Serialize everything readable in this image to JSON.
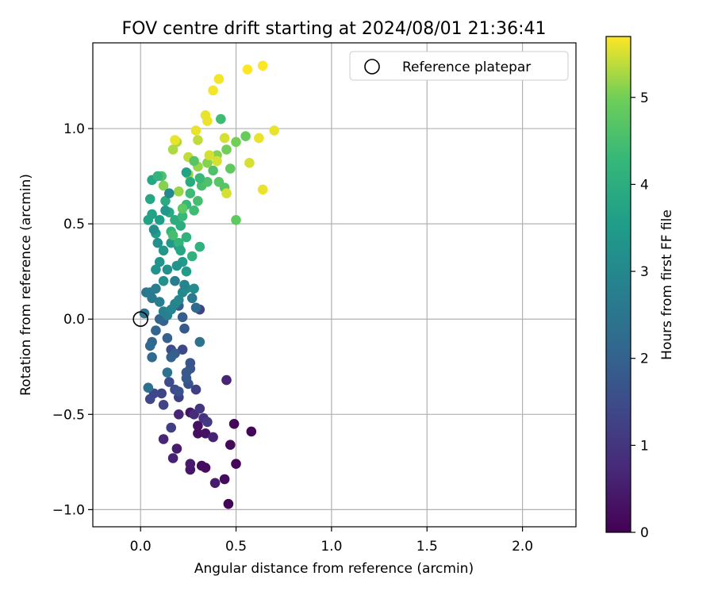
{
  "chart_data": {
    "type": "scatter",
    "title": "FOV centre drift starting at 2024/08/01 21:36:41",
    "xlabel": "Angular distance from reference (arcmin)",
    "ylabel": "Rotation from reference (arcmin)",
    "xlim": [
      -0.25,
      2.28
    ],
    "ylim": [
      -1.09,
      1.45
    ],
    "xticks": [
      0.0,
      0.5,
      1.0,
      1.5,
      2.0
    ],
    "xtick_labels": [
      "0.0",
      "0.5",
      "1.0",
      "1.5",
      "2.0"
    ],
    "yticks": [
      -1.0,
      -0.5,
      0.0,
      0.5,
      1.0
    ],
    "ytick_labels": [
      "−1.0",
      "−0.5",
      "0.0",
      "0.5",
      "1.0"
    ],
    "grid": true,
    "legend": {
      "placement": "top-right",
      "entries": [
        "Reference platepar"
      ]
    },
    "reference_point": {
      "x": 0.0,
      "y": 0.0,
      "marker": "open-circle"
    },
    "colorbar": {
      "label": "Hours from first FF file",
      "range": [
        0,
        5.7
      ],
      "ticks": [
        0,
        1,
        2,
        3,
        4,
        5
      ],
      "tick_labels": [
        "0",
        "1",
        "2",
        "3",
        "4",
        "5"
      ],
      "colormap": "viridis"
    },
    "series": [
      {
        "marker": "filled-circle",
        "points": [
          [
            0.46,
            -0.97,
            0.05
          ],
          [
            0.5,
            -0.76,
            0.1
          ],
          [
            0.58,
            -0.59,
            0.1
          ],
          [
            0.49,
            -0.55,
            0.1
          ],
          [
            0.47,
            -0.66,
            0.15
          ],
          [
            0.44,
            -0.84,
            0.2
          ],
          [
            0.34,
            -0.78,
            0.2
          ],
          [
            0.32,
            -0.77,
            0.2
          ],
          [
            0.3,
            -0.6,
            0.25
          ],
          [
            0.34,
            -0.6,
            0.3
          ],
          [
            0.3,
            -0.56,
            0.3
          ],
          [
            0.26,
            -0.49,
            0.35
          ],
          [
            0.39,
            -0.86,
            0.5
          ],
          [
            0.26,
            -0.79,
            0.4
          ],
          [
            0.26,
            -0.76,
            0.45
          ],
          [
            0.19,
            -0.68,
            0.5
          ],
          [
            0.17,
            -0.73,
            0.6
          ],
          [
            0.38,
            -0.62,
            0.6
          ],
          [
            0.2,
            -0.5,
            0.65
          ],
          [
            0.12,
            -0.63,
            0.7
          ],
          [
            0.45,
            -0.32,
            0.65
          ],
          [
            0.28,
            -0.5,
            0.8
          ],
          [
            0.33,
            -0.52,
            0.9
          ],
          [
            0.31,
            -0.47,
            1.0
          ],
          [
            0.35,
            -0.54,
            1.1
          ],
          [
            0.16,
            -0.57,
            1.2
          ],
          [
            0.29,
            -0.37,
            1.2
          ],
          [
            0.2,
            -0.41,
            1.2
          ],
          [
            0.11,
            -0.39,
            1.3
          ],
          [
            0.12,
            -0.45,
            1.3
          ],
          [
            0.07,
            -0.39,
            1.4
          ],
          [
            0.05,
            -0.42,
            1.4
          ],
          [
            0.31,
            0.05,
            1.3
          ],
          [
            0.22,
            -0.16,
            1.4
          ],
          [
            0.16,
            -0.16,
            1.5
          ],
          [
            0.15,
            -0.33,
            1.5
          ],
          [
            0.18,
            -0.37,
            1.5
          ],
          [
            0.2,
            -0.38,
            1.6
          ],
          [
            0.25,
            -0.34,
            1.6
          ],
          [
            0.26,
            -0.23,
            1.7
          ],
          [
            0.26,
            -0.26,
            1.7
          ],
          [
            0.24,
            -0.28,
            1.8
          ],
          [
            0.24,
            -0.31,
            1.8
          ],
          [
            0.23,
            -0.05,
            1.8
          ],
          [
            0.22,
            0.01,
            1.9
          ],
          [
            0.2,
            0.07,
            1.9
          ],
          [
            0.18,
            -0.18,
            1.9
          ],
          [
            0.16,
            -0.2,
            2.0
          ],
          [
            0.14,
            -0.1,
            2.0
          ],
          [
            0.12,
            -0.01,
            2.0
          ],
          [
            0.1,
            0.0,
            2.1
          ],
          [
            0.08,
            -0.06,
            2.1
          ],
          [
            0.06,
            -0.12,
            2.1
          ],
          [
            0.05,
            -0.14,
            2.2
          ],
          [
            0.06,
            -0.2,
            2.2
          ],
          [
            0.04,
            -0.36,
            2.3
          ],
          [
            0.14,
            -0.28,
            2.4
          ],
          [
            0.31,
            -0.12,
            2.4
          ],
          [
            0.02,
            0.03,
            2.5
          ],
          [
            0.03,
            0.14,
            2.5
          ],
          [
            0.05,
            0.14,
            2.6
          ],
          [
            0.06,
            0.11,
            2.6
          ],
          [
            0.08,
            0.16,
            2.7
          ],
          [
            0.1,
            0.09,
            2.7
          ],
          [
            0.12,
            0.04,
            2.8
          ],
          [
            0.14,
            0.02,
            2.8
          ],
          [
            0.16,
            0.05,
            2.9
          ],
          [
            0.18,
            0.08,
            2.9
          ],
          [
            0.2,
            0.1,
            3.0
          ],
          [
            0.22,
            0.14,
            3.0
          ],
          [
            0.24,
            0.16,
            3.1
          ],
          [
            0.28,
            0.16,
            3.1
          ],
          [
            0.12,
            0.2,
            3.2
          ],
          [
            0.14,
            0.26,
            3.2
          ],
          [
            0.08,
            0.26,
            3.3
          ],
          [
            0.1,
            0.3,
            3.3
          ],
          [
            0.12,
            0.36,
            3.4
          ],
          [
            0.16,
            0.4,
            3.4
          ],
          [
            0.2,
            0.38,
            3.5
          ],
          [
            0.22,
            0.3,
            3.5
          ],
          [
            0.24,
            0.25,
            3.5
          ],
          [
            0.08,
            0.45,
            3.6
          ],
          [
            0.1,
            0.52,
            3.6
          ],
          [
            0.06,
            0.55,
            3.7
          ],
          [
            0.04,
            0.52,
            3.7
          ],
          [
            0.05,
            0.63,
            3.8
          ],
          [
            0.06,
            0.73,
            3.8
          ],
          [
            0.13,
            0.62,
            3.9
          ],
          [
            0.15,
            0.56,
            3.9
          ],
          [
            0.18,
            0.52,
            4.0
          ],
          [
            0.21,
            0.49,
            4.0
          ],
          [
            0.24,
            0.43,
            4.1
          ],
          [
            0.27,
            0.33,
            4.1
          ],
          [
            0.31,
            0.38,
            4.1
          ],
          [
            0.16,
            0.46,
            4.2
          ],
          [
            0.2,
            0.4,
            4.2
          ],
          [
            0.22,
            0.54,
            4.3
          ],
          [
            0.24,
            0.6,
            4.3
          ],
          [
            0.26,
            0.66,
            4.4
          ],
          [
            0.28,
            0.57,
            4.4
          ],
          [
            0.3,
            0.62,
            4.5
          ],
          [
            0.32,
            0.7,
            4.5
          ],
          [
            0.35,
            0.72,
            4.6
          ],
          [
            0.38,
            0.78,
            4.6
          ],
          [
            0.41,
            0.72,
            4.7
          ],
          [
            0.44,
            0.69,
            4.7
          ],
          [
            0.47,
            0.79,
            4.8
          ],
          [
            0.5,
            0.52,
            4.8
          ],
          [
            0.42,
            1.05,
            4.4
          ],
          [
            0.55,
            0.96,
            4.9
          ],
          [
            0.5,
            0.93,
            5.0
          ],
          [
            0.45,
            0.89,
            5.0
          ],
          [
            0.4,
            0.86,
            5.1
          ],
          [
            0.35,
            0.82,
            5.1
          ],
          [
            0.3,
            0.8,
            5.2
          ],
          [
            0.25,
            0.76,
            5.2
          ],
          [
            0.2,
            0.67,
            5.2
          ],
          [
            0.17,
            0.89,
            5.3
          ],
          [
            0.19,
            0.93,
            5.3
          ],
          [
            0.25,
            0.85,
            5.4
          ],
          [
            0.3,
            0.94,
            5.4
          ],
          [
            0.36,
            0.86,
            5.5
          ],
          [
            0.4,
            0.83,
            5.5
          ],
          [
            0.44,
            0.95,
            5.5
          ],
          [
            0.45,
            0.66,
            5.5
          ],
          [
            0.57,
            0.82,
            5.5
          ],
          [
            0.62,
            0.95,
            5.6
          ],
          [
            0.64,
            0.68,
            5.6
          ],
          [
            0.7,
            0.99,
            5.6
          ],
          [
            0.34,
            1.07,
            5.6
          ],
          [
            0.35,
            1.04,
            5.6
          ],
          [
            0.29,
            0.99,
            5.6
          ],
          [
            0.38,
            1.2,
            5.65
          ],
          [
            0.41,
            1.26,
            5.65
          ],
          [
            0.56,
            1.31,
            5.7
          ],
          [
            0.64,
            1.33,
            5.7
          ],
          [
            0.18,
            0.94,
            5.6
          ],
          [
            0.12,
            0.7,
            5.1
          ],
          [
            0.11,
            0.75,
            4.6
          ],
          [
            0.09,
            0.75,
            4.2
          ],
          [
            0.26,
            0.72,
            3.9
          ],
          [
            0.24,
            0.77,
            3.7
          ],
          [
            0.28,
            0.83,
            4.7
          ],
          [
            0.31,
            0.74,
            4.3
          ],
          [
            0.22,
            0.58,
            4.8
          ],
          [
            0.17,
            0.44,
            4.5
          ],
          [
            0.21,
            0.36,
            3.8
          ],
          [
            0.19,
            0.28,
            3.3
          ],
          [
            0.09,
            0.4,
            3.2
          ],
          [
            0.07,
            0.47,
            3.1
          ],
          [
            0.13,
            0.57,
            3.4
          ],
          [
            0.15,
            0.66,
            3.0
          ],
          [
            0.23,
            0.18,
            2.9
          ],
          [
            0.27,
            0.11,
            2.6
          ],
          [
            0.18,
            0.2,
            2.7
          ],
          [
            0.29,
            0.06,
            2.2
          ]
        ]
      }
    ]
  }
}
